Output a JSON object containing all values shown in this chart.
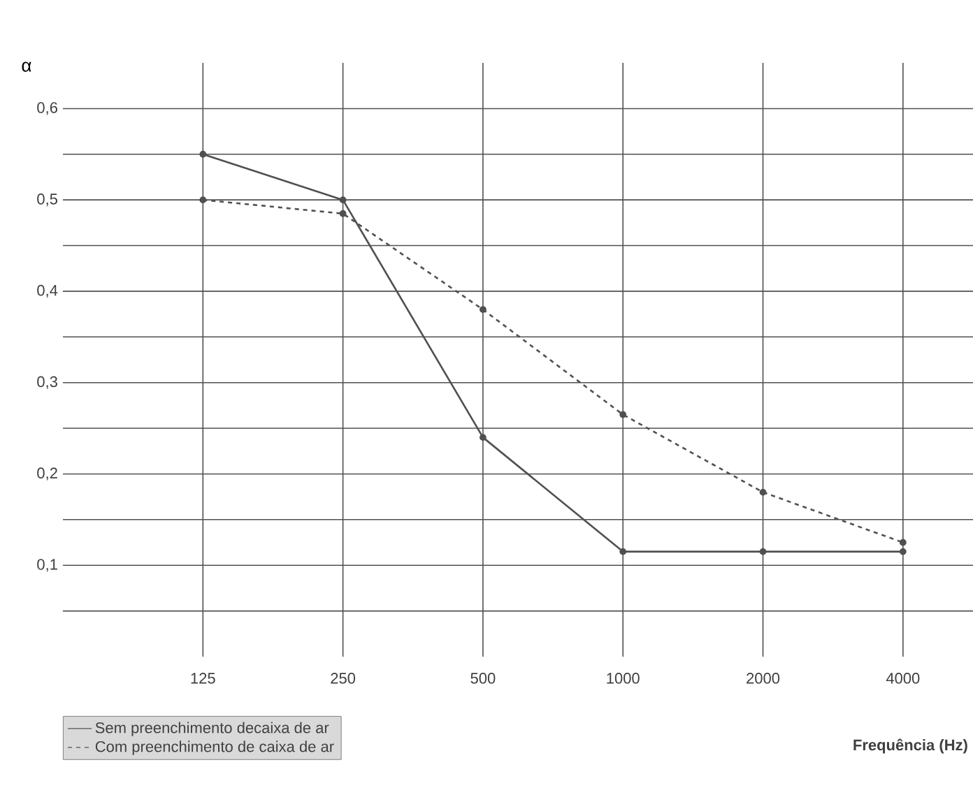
{
  "chart_data": {
    "type": "line",
    "ylabel": "α",
    "xlabel": "Frequência (Hz)",
    "categories": [
      "125",
      "250",
      "500",
      "1000",
      "2000",
      "4000"
    ],
    "series": [
      {
        "name": "Sem preenchimento decaixa de  ar",
        "color": "#505050",
        "values": [
          0.55,
          0.5,
          0.24,
          0.115,
          0.115,
          0.115
        ],
        "line_style": "solid"
      },
      {
        "name": "Com preenchimento de caixa de ar",
        "color": "#505050",
        "values": [
          0.5,
          0.485,
          0.38,
          0.265,
          0.18,
          0.125
        ],
        "line_style": "dashed"
      }
    ],
    "ylim": [
      0,
      0.65
    ],
    "yticks": [
      {
        "value": 0.05,
        "label": null
      },
      {
        "value": 0.1,
        "label": "0,1"
      },
      {
        "value": 0.15,
        "label": null
      },
      {
        "value": 0.2,
        "label": "0,2"
      },
      {
        "value": 0.25,
        "label": null
      },
      {
        "value": 0.3,
        "label": "0,3"
      },
      {
        "value": 0.35,
        "label": null
      },
      {
        "value": 0.4,
        "label": "0,4"
      },
      {
        "value": 0.45,
        "label": null
      },
      {
        "value": 0.5,
        "label": "0,5"
      },
      {
        "value": 0.55,
        "label": null
      },
      {
        "value": 0.6,
        "label": "0,6"
      }
    ],
    "grid": true,
    "legend": "bottom left",
    "marker": "circle"
  }
}
